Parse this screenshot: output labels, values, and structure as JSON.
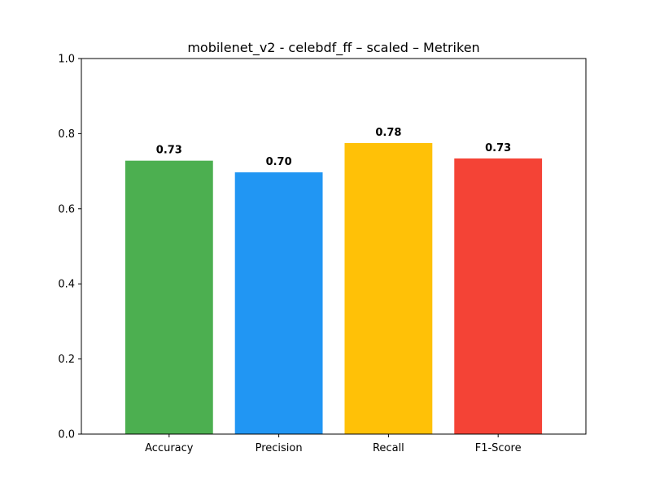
{
  "chart_data": {
    "type": "bar",
    "title": "mobilenet_v2 - celebdf_ff – scaled – Metriken",
    "xlabel": "",
    "ylabel": "",
    "categories": [
      "Accuracy",
      "Precision",
      "Recall",
      "F1-Score"
    ],
    "values": [
      0.728,
      0.697,
      0.775,
      0.734
    ],
    "value_labels": [
      "0.73",
      "0.70",
      "0.78",
      "0.73"
    ],
    "colors": [
      "#4caf50",
      "#2196f3",
      "#ffc107",
      "#f44336"
    ],
    "ylim": [
      0,
      1.0
    ],
    "yticks": [
      "0.0",
      "0.2",
      "0.4",
      "0.6",
      "0.8",
      "1.0"
    ],
    "grid": false
  }
}
